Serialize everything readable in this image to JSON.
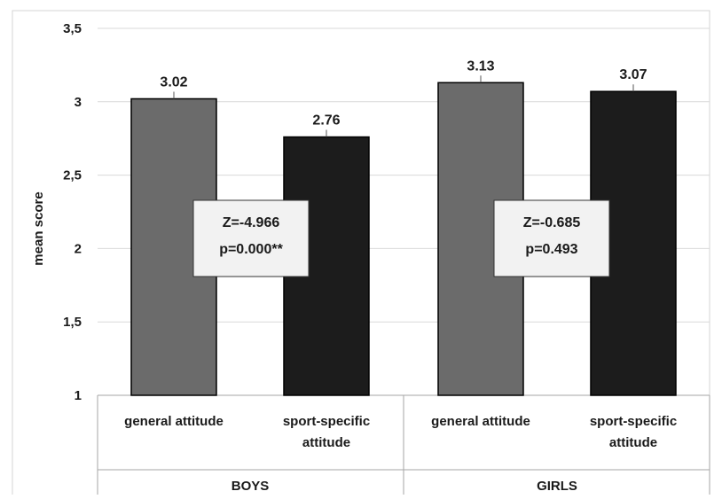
{
  "chart_data": {
    "type": "bar",
    "title": "",
    "xlabel": "",
    "ylabel": "mean score",
    "ylim": [
      1,
      3.5
    ],
    "yticks": [
      "1",
      "1,5",
      "2",
      "2,5",
      "3",
      "3,5"
    ],
    "grid": true,
    "groups": [
      {
        "name": "BOYS",
        "bars": [
          {
            "category": "general  attitude",
            "value": 3.02,
            "label": "3.02",
            "color": "#6b6b6b"
          },
          {
            "category": "sport-specific attitude",
            "value": 2.76,
            "label": "2.76",
            "color": "#1c1c1c"
          }
        ],
        "stat": {
          "line1": "Z=-4.966",
          "line2": "p=0.000**"
        }
      },
      {
        "name": "GIRLS",
        "bars": [
          {
            "category": "general  attitude",
            "value": 3.13,
            "label": "3.13",
            "color": "#6b6b6b"
          },
          {
            "category": "sport-specific attitude",
            "value": 3.07,
            "label": "3.07",
            "color": "#1c1c1c"
          }
        ],
        "stat": {
          "line1": "Z=-0.685",
          "line2": "p=0.493"
        }
      }
    ]
  }
}
